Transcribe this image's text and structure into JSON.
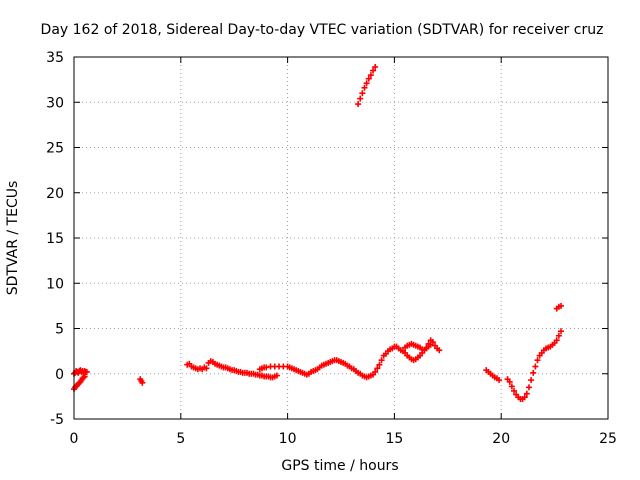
{
  "chart_data": {
    "type": "scatter",
    "title": "Day 162 of 2018, Sidereal Day-to-day VTEC variation (SDTVAR) for receiver cruz",
    "xlabel": "GPS time / hours",
    "ylabel": "SDTVAR / TECUs",
    "xlim": [
      0,
      25
    ],
    "ylim": [
      -5,
      35
    ],
    "xticks": [
      0,
      5,
      10,
      15,
      20,
      25
    ],
    "yticks": [
      -5,
      0,
      5,
      10,
      15,
      20,
      25,
      30,
      35
    ],
    "grid": true,
    "marker": "+",
    "color": "#ff0000",
    "series": [
      {
        "name": "SDTVAR",
        "points": [
          [
            0.0,
            -1.7
          ],
          [
            0.05,
            -1.5
          ],
          [
            0.1,
            -1.4
          ],
          [
            0.15,
            -1.3
          ],
          [
            0.2,
            -1.1
          ],
          [
            0.25,
            -1.0
          ],
          [
            0.3,
            -0.9
          ],
          [
            0.35,
            -0.7
          ],
          [
            0.4,
            -0.5
          ],
          [
            0.45,
            -0.4
          ],
          [
            0.5,
            -0.3
          ],
          [
            0.0,
            0.0
          ],
          [
            0.05,
            0.1
          ],
          [
            0.1,
            0.3
          ],
          [
            0.15,
            0.2
          ],
          [
            0.2,
            0.1
          ],
          [
            0.25,
            0.3
          ],
          [
            0.3,
            0.4
          ],
          [
            0.35,
            0.2
          ],
          [
            0.4,
            0.3
          ],
          [
            0.45,
            0.1
          ],
          [
            0.5,
            0.3
          ],
          [
            0.55,
            0.2
          ],
          [
            0.6,
            0.2
          ],
          [
            3.1,
            -0.6
          ],
          [
            3.15,
            -0.8
          ],
          [
            3.2,
            -1.0
          ],
          [
            5.3,
            1.0
          ],
          [
            5.4,
            1.1
          ],
          [
            5.5,
            0.8
          ],
          [
            5.6,
            0.7
          ],
          [
            5.7,
            0.6
          ],
          [
            5.8,
            0.5
          ],
          [
            5.9,
            0.6
          ],
          [
            6.0,
            0.5
          ],
          [
            6.1,
            0.7
          ],
          [
            6.2,
            0.6
          ],
          [
            6.3,
            1.2
          ],
          [
            6.4,
            1.4
          ],
          [
            6.5,
            1.3
          ],
          [
            6.6,
            1.1
          ],
          [
            6.7,
            1.0
          ],
          [
            6.8,
            0.9
          ],
          [
            6.9,
            0.8
          ],
          [
            7.0,
            0.7
          ],
          [
            7.1,
            0.7
          ],
          [
            7.2,
            0.6
          ],
          [
            7.3,
            0.5
          ],
          [
            7.4,
            0.4
          ],
          [
            7.5,
            0.4
          ],
          [
            7.6,
            0.3
          ],
          [
            7.7,
            0.2
          ],
          [
            7.8,
            0.2
          ],
          [
            7.9,
            0.1
          ],
          [
            8.0,
            0.1
          ],
          [
            8.1,
            0.1
          ],
          [
            8.2,
            0.0
          ],
          [
            8.3,
            0.0
          ],
          [
            8.4,
            0.0
          ],
          [
            8.5,
            -0.1
          ],
          [
            8.6,
            -0.1
          ],
          [
            8.7,
            -0.2
          ],
          [
            8.8,
            -0.2
          ],
          [
            8.9,
            -0.3
          ],
          [
            9.0,
            -0.3
          ],
          [
            9.1,
            -0.3
          ],
          [
            9.2,
            -0.4
          ],
          [
            9.3,
            -0.4
          ],
          [
            9.4,
            -0.3
          ],
          [
            9.5,
            -0.2
          ],
          [
            8.7,
            0.5
          ],
          [
            8.8,
            0.6
          ],
          [
            8.9,
            0.7
          ],
          [
            9.0,
            0.7
          ],
          [
            9.2,
            0.8
          ],
          [
            9.4,
            0.8
          ],
          [
            9.6,
            0.8
          ],
          [
            9.8,
            0.8
          ],
          [
            10.0,
            0.8
          ],
          [
            10.1,
            0.7
          ],
          [
            10.2,
            0.6
          ],
          [
            10.3,
            0.5
          ],
          [
            10.4,
            0.4
          ],
          [
            10.5,
            0.3
          ],
          [
            10.6,
            0.2
          ],
          [
            10.7,
            0.1
          ],
          [
            10.8,
            0.0
          ],
          [
            10.9,
            -0.1
          ],
          [
            11.0,
            0.0
          ],
          [
            11.1,
            0.2
          ],
          [
            11.2,
            0.3
          ],
          [
            11.3,
            0.4
          ],
          [
            11.4,
            0.5
          ],
          [
            11.5,
            0.7
          ],
          [
            11.6,
            0.9
          ],
          [
            11.7,
            1.0
          ],
          [
            11.8,
            1.1
          ],
          [
            11.9,
            1.2
          ],
          [
            12.0,
            1.3
          ],
          [
            12.1,
            1.4
          ],
          [
            12.2,
            1.5
          ],
          [
            12.3,
            1.5
          ],
          [
            12.4,
            1.4
          ],
          [
            12.5,
            1.3
          ],
          [
            12.6,
            1.2
          ],
          [
            12.7,
            1.1
          ],
          [
            12.8,
            0.9
          ],
          [
            12.9,
            0.8
          ],
          [
            13.0,
            0.6
          ],
          [
            13.1,
            0.5
          ],
          [
            13.2,
            0.3
          ],
          [
            13.3,
            0.1
          ],
          [
            13.4,
            0.0
          ],
          [
            13.5,
            -0.2
          ],
          [
            13.6,
            -0.3
          ],
          [
            13.7,
            -0.4
          ],
          [
            13.8,
            -0.3
          ],
          [
            13.9,
            -0.2
          ],
          [
            14.0,
            -0.1
          ],
          [
            14.1,
            0.2
          ],
          [
            13.3,
            29.8
          ],
          [
            13.4,
            30.4
          ],
          [
            13.5,
            31.0
          ],
          [
            13.6,
            31.6
          ],
          [
            13.7,
            32.1
          ],
          [
            13.8,
            32.6
          ],
          [
            13.9,
            33.0
          ],
          [
            14.0,
            33.5
          ],
          [
            14.1,
            33.9
          ],
          [
            14.2,
            0.6
          ],
          [
            14.3,
            1.0
          ],
          [
            14.4,
            1.5
          ],
          [
            14.5,
            2.0
          ],
          [
            14.6,
            2.2
          ],
          [
            14.7,
            2.5
          ],
          [
            14.8,
            2.7
          ],
          [
            14.9,
            2.8
          ],
          [
            15.0,
            3.0
          ],
          [
            15.1,
            3.0
          ],
          [
            15.2,
            2.8
          ],
          [
            15.3,
            2.6
          ],
          [
            15.4,
            2.5
          ],
          [
            15.5,
            2.3
          ],
          [
            15.6,
            2.0
          ],
          [
            15.7,
            1.8
          ],
          [
            15.8,
            1.6
          ],
          [
            15.9,
            1.5
          ],
          [
            16.0,
            1.6
          ],
          [
            16.1,
            1.8
          ],
          [
            16.2,
            2.0
          ],
          [
            16.3,
            2.3
          ],
          [
            16.4,
            2.6
          ],
          [
            16.5,
            2.9
          ],
          [
            16.6,
            3.3
          ],
          [
            16.7,
            3.7
          ],
          [
            16.8,
            3.5
          ],
          [
            16.9,
            3.1
          ],
          [
            17.0,
            2.8
          ],
          [
            17.1,
            2.6
          ],
          [
            15.5,
            2.9
          ],
          [
            15.6,
            3.1
          ],
          [
            15.7,
            3.2
          ],
          [
            15.8,
            3.3
          ],
          [
            15.9,
            3.2
          ],
          [
            16.0,
            3.1
          ],
          [
            16.1,
            3.0
          ],
          [
            16.2,
            2.9
          ],
          [
            16.3,
            2.7
          ],
          [
            16.4,
            2.6
          ],
          [
            16.5,
            2.8
          ],
          [
            16.6,
            3.0
          ],
          [
            16.7,
            3.2
          ],
          [
            19.3,
            0.4
          ],
          [
            19.4,
            0.2
          ],
          [
            19.5,
            0.0
          ],
          [
            19.6,
            -0.2
          ],
          [
            19.7,
            -0.4
          ],
          [
            19.8,
            -0.5
          ],
          [
            19.9,
            -0.7
          ],
          [
            20.3,
            -0.6
          ],
          [
            20.4,
            -0.9
          ],
          [
            20.5,
            -1.4
          ],
          [
            20.6,
            -1.9
          ],
          [
            20.7,
            -2.3
          ],
          [
            20.8,
            -2.6
          ],
          [
            20.9,
            -2.8
          ],
          [
            21.0,
            -2.8
          ],
          [
            21.1,
            -2.6
          ],
          [
            21.2,
            -2.2
          ],
          [
            21.3,
            -1.5
          ],
          [
            21.4,
            -0.7
          ],
          [
            21.5,
            0.1
          ],
          [
            21.6,
            0.8
          ],
          [
            21.7,
            1.5
          ],
          [
            21.8,
            2.0
          ],
          [
            21.9,
            2.3
          ],
          [
            22.0,
            2.6
          ],
          [
            22.1,
            2.8
          ],
          [
            22.2,
            2.9
          ],
          [
            22.3,
            3.0
          ],
          [
            22.4,
            3.2
          ],
          [
            22.5,
            3.4
          ],
          [
            22.6,
            3.7
          ],
          [
            22.7,
            4.2
          ],
          [
            22.8,
            4.7
          ],
          [
            22.6,
            7.2
          ],
          [
            22.7,
            7.4
          ],
          [
            22.8,
            7.5
          ]
        ]
      }
    ]
  }
}
